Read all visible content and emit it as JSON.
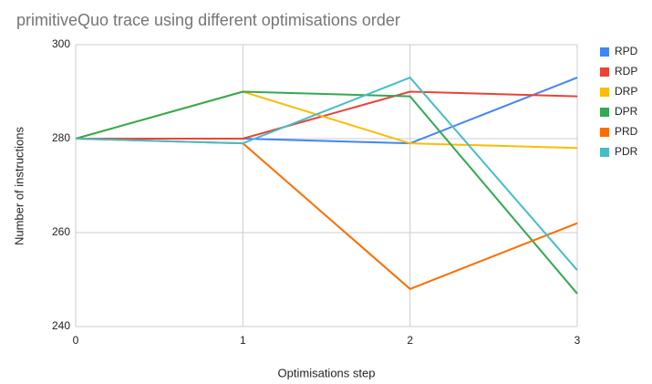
{
  "chart_data": {
    "type": "line",
    "title": "primitiveQuo trace using different optimisations order",
    "xlabel": "Optimisations step",
    "ylabel": "Number of instructions",
    "x": [
      0,
      1,
      2,
      3
    ],
    "xlim": [
      0,
      3
    ],
    "xticks": [
      0,
      1,
      2,
      3
    ],
    "ylim": [
      240,
      300
    ],
    "yticks": [
      240,
      260,
      280,
      300
    ],
    "grid": true,
    "legend": "right",
    "series": [
      {
        "name": "RPD",
        "color": "#4285f4",
        "values": [
          280,
          280,
          279,
          293
        ]
      },
      {
        "name": "RDP",
        "color": "#ea4335",
        "values": [
          280,
          280,
          290,
          289
        ]
      },
      {
        "name": "DRP",
        "color": "#fbbc04",
        "values": [
          280,
          290,
          279,
          278
        ]
      },
      {
        "name": "DPR",
        "color": "#34a853",
        "values": [
          280,
          290,
          289,
          247
        ]
      },
      {
        "name": "PRD",
        "color": "#ff6d01",
        "values": [
          280,
          279,
          248,
          262
        ]
      },
      {
        "name": "PDR",
        "color": "#46bdc6",
        "values": [
          280,
          279,
          293,
          252
        ]
      }
    ]
  }
}
